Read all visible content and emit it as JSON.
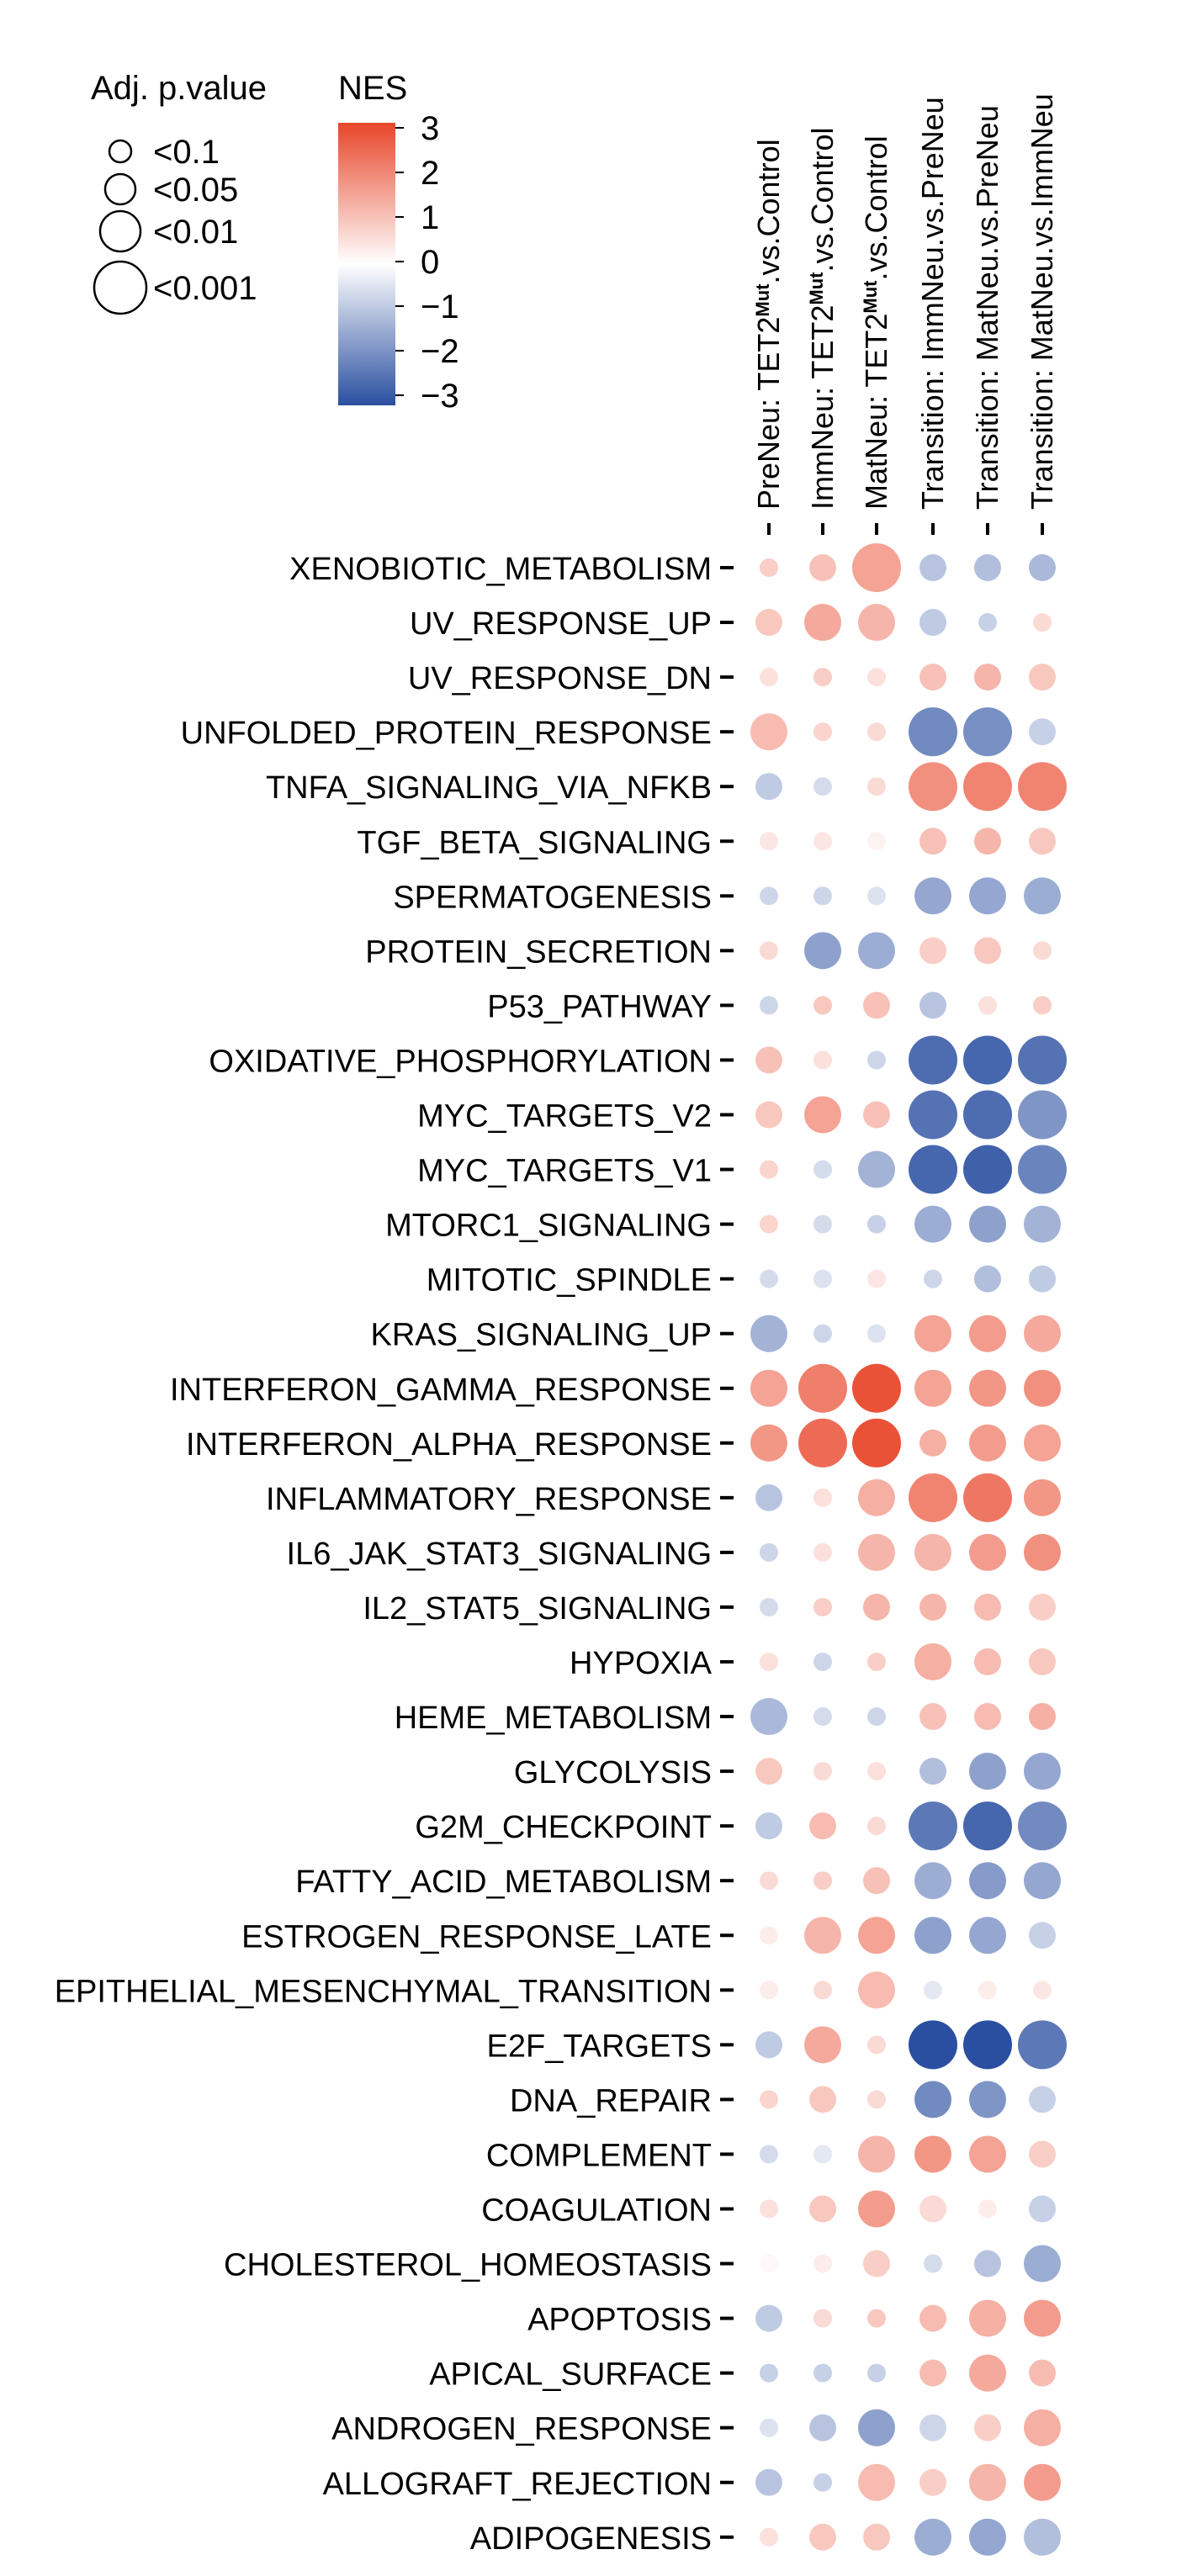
{
  "chart_data": {
    "type": "dotplot",
    "legend": {
      "size_title": "Adj. p.value",
      "size_labels": [
        "<0.1",
        "<0.05",
        "<0.01",
        "<0.001"
      ],
      "color_title": "NES",
      "color_ticks": [
        "3",
        "2",
        "1",
        "0",
        "−1",
        "−2",
        "−3"
      ],
      "color_range": [
        -3,
        3
      ],
      "colors": {
        "high": "#e8462a",
        "mid": "#ffffff",
        "low": "#2a4fa0"
      }
    },
    "columns": [
      {
        "label_prefix": "PreNeu: TET2",
        "superscript": "Mut",
        "label_suffix": ".vs.Control"
      },
      {
        "label_prefix": "ImmNeu: TET2",
        "superscript": "Mut",
        "label_suffix": ".vs.Control"
      },
      {
        "label_prefix": "MatNeu: TET2",
        "superscript": "Mut",
        "label_suffix": ".vs.Control"
      },
      {
        "label_prefix": "Transition: ImmNeu.vs.PreNeu",
        "superscript": "",
        "label_suffix": ""
      },
      {
        "label_prefix": "Transition: MatNeu.vs.PreNeu",
        "superscript": "",
        "label_suffix": ""
      },
      {
        "label_prefix": "Transition: MatNeu.vs.ImmNeu",
        "superscript": "",
        "label_suffix": ""
      }
    ],
    "rows": [
      "XENOBIOTIC_METABOLISM",
      "UV_RESPONSE_UP",
      "UV_RESPONSE_DN",
      "UNFOLDED_PROTEIN_RESPONSE",
      "TNFA_SIGNALING_VIA_NFKB",
      "TGF_BETA_SIGNALING",
      "SPERMATOGENESIS",
      "PROTEIN_SECRETION",
      "P53_PATHWAY",
      "OXIDATIVE_PHOSPHORYLATION",
      "MYC_TARGETS_V2",
      "MYC_TARGETS_V1",
      "MTORC1_SIGNALING",
      "MITOTIC_SPINDLE",
      "KRAS_SIGNALING_UP",
      "INTERFERON_GAMMA_RESPONSE",
      "INTERFERON_ALPHA_RESPONSE",
      "INFLAMMATORY_RESPONSE",
      "IL6_JAK_STAT3_SIGNALING",
      "IL2_STAT5_SIGNALING",
      "HYPOXIA",
      "HEME_METABOLISM",
      "GLYCOLYSIS",
      "G2M_CHECKPOINT",
      "FATTY_ACID_METABOLISM",
      "ESTROGEN_RESPONSE_LATE",
      "EPITHELIAL_MESENCHYMAL_TRANSITION",
      "E2F_TARGETS",
      "DNA_REPAIR",
      "COMPLEMENT",
      "COAGULATION",
      "CHOLESTEROL_HOMEOSTASIS",
      "APOPTOSIS",
      "APICAL_SURFACE",
      "ANDROGEN_RESPONSE",
      "ALLOGRAFT_REJECTION",
      "ADIPOGENESIS"
    ],
    "nes": [
      [
        0.8,
        1.0,
        1.5,
        -1.0,
        -1.1,
        -1.2
      ],
      [
        0.9,
        1.4,
        1.2,
        -0.9,
        -0.8,
        0.6
      ],
      [
        0.5,
        0.8,
        0.5,
        1.0,
        1.2,
        0.9
      ],
      [
        1.1,
        0.7,
        0.6,
        -2.0,
        -1.9,
        -0.8
      ],
      [
        -0.9,
        -0.6,
        0.6,
        1.8,
        2.0,
        2.0
      ],
      [
        0.4,
        0.4,
        0.2,
        1.0,
        1.2,
        0.9
      ],
      [
        -0.7,
        -0.7,
        -0.5,
        -1.5,
        -1.5,
        -1.4
      ],
      [
        0.6,
        -1.6,
        -1.4,
        0.8,
        0.9,
        0.6
      ],
      [
        -0.7,
        0.9,
        1.0,
        -1.0,
        0.5,
        0.8
      ],
      [
        1.0,
        0.5,
        -0.7,
        -2.5,
        -2.6,
        -2.4
      ],
      [
        0.9,
        1.5,
        1.0,
        -2.4,
        -2.5,
        -1.8
      ],
      [
        0.7,
        -0.6,
        -1.3,
        -2.6,
        -2.7,
        -2.1
      ],
      [
        0.7,
        -0.6,
        -0.8,
        -1.4,
        -1.6,
        -1.3
      ],
      [
        -0.6,
        -0.5,
        0.4,
        -0.7,
        -1.1,
        -0.9
      ],
      [
        -1.3,
        -0.7,
        -0.5,
        1.5,
        1.6,
        1.4
      ],
      [
        1.5,
        2.1,
        2.8,
        1.5,
        1.7,
        1.8
      ],
      [
        1.7,
        2.4,
        2.8,
        1.3,
        1.6,
        1.5
      ],
      [
        -1.0,
        0.5,
        1.3,
        2.0,
        2.2,
        1.7
      ],
      [
        -0.7,
        0.5,
        1.2,
        1.2,
        1.6,
        1.8
      ],
      [
        -0.6,
        0.8,
        1.2,
        1.2,
        1.1,
        0.8
      ],
      [
        0.5,
        -0.7,
        0.8,
        1.3,
        1.1,
        0.9
      ],
      [
        -1.2,
        -0.6,
        -0.7,
        1.0,
        1.1,
        1.3
      ],
      [
        0.9,
        0.6,
        0.5,
        -1.1,
        -1.6,
        -1.5
      ],
      [
        -0.9,
        1.1,
        0.6,
        -2.3,
        -2.6,
        -2.0
      ],
      [
        0.6,
        0.8,
        1.0,
        -1.4,
        -1.7,
        -1.5
      ],
      [
        0.3,
        1.2,
        1.5,
        -1.6,
        -1.5,
        -0.8
      ],
      [
        0.3,
        0.6,
        1.1,
        -0.4,
        0.3,
        0.4
      ],
      [
        -0.9,
        1.4,
        0.6,
        -3.0,
        -3.1,
        -2.3
      ],
      [
        0.7,
        0.9,
        0.6,
        -2.0,
        -1.8,
        -0.8
      ],
      [
        -0.6,
        -0.4,
        1.2,
        1.7,
        1.5,
        0.8
      ],
      [
        0.5,
        0.9,
        1.6,
        0.6,
        0.3,
        -0.8
      ],
      [
        0.1,
        0.3,
        0.8,
        -0.6,
        -1.0,
        -1.4
      ],
      [
        -0.9,
        0.6,
        0.9,
        1.1,
        1.3,
        1.6
      ],
      [
        -0.8,
        -0.8,
        -0.8,
        1.1,
        1.4,
        1.1
      ],
      [
        -0.5,
        -1.0,
        -1.6,
        -0.7,
        0.8,
        1.3
      ],
      [
        -1.0,
        -0.8,
        1.1,
        0.8,
        1.2,
        1.6
      ],
      [
        0.5,
        0.9,
        0.9,
        -1.4,
        -1.5,
        -1.1
      ]
    ],
    "padj_level": [
      [
        0,
        1,
        3,
        1,
        1,
        1
      ],
      [
        1,
        2,
        2,
        1,
        0,
        0
      ],
      [
        0,
        0,
        0,
        1,
        1,
        1
      ],
      [
        2,
        0,
        0,
        3,
        3,
        1
      ],
      [
        1,
        0,
        0,
        3,
        3,
        3
      ],
      [
        0,
        0,
        0,
        1,
        1,
        1
      ],
      [
        0,
        0,
        0,
        2,
        2,
        2
      ],
      [
        0,
        2,
        2,
        1,
        1,
        0
      ],
      [
        0,
        0,
        1,
        1,
        0,
        0
      ],
      [
        1,
        0,
        0,
        3,
        3,
        3
      ],
      [
        1,
        2,
        1,
        3,
        3,
        3
      ],
      [
        0,
        0,
        2,
        3,
        3,
        3
      ],
      [
        0,
        0,
        0,
        2,
        2,
        2
      ],
      [
        0,
        0,
        0,
        0,
        1,
        1
      ],
      [
        2,
        0,
        0,
        2,
        2,
        2
      ],
      [
        2,
        3,
        3,
        2,
        2,
        2
      ],
      [
        2,
        3,
        3,
        1,
        2,
        2
      ],
      [
        1,
        0,
        2,
        3,
        3,
        2
      ],
      [
        0,
        0,
        2,
        2,
        2,
        2
      ],
      [
        0,
        0,
        1,
        1,
        1,
        1
      ],
      [
        0,
        0,
        0,
        2,
        1,
        1
      ],
      [
        2,
        0,
        0,
        1,
        1,
        1
      ],
      [
        1,
        0,
        0,
        1,
        2,
        2
      ],
      [
        1,
        1,
        0,
        3,
        3,
        3
      ],
      [
        0,
        0,
        1,
        2,
        2,
        2
      ],
      [
        0,
        2,
        2,
        2,
        2,
        1
      ],
      [
        0,
        0,
        2,
        0,
        0,
        0
      ],
      [
        1,
        2,
        0,
        3,
        3,
        3
      ],
      [
        0,
        1,
        0,
        2,
        2,
        1
      ],
      [
        0,
        0,
        2,
        2,
        2,
        1
      ],
      [
        0,
        1,
        2,
        1,
        0,
        1
      ],
      [
        0,
        0,
        1,
        0,
        1,
        2
      ],
      [
        1,
        0,
        0,
        1,
        2,
        2
      ],
      [
        0,
        0,
        0,
        1,
        2,
        1
      ],
      [
        0,
        1,
        2,
        1,
        1,
        2
      ],
      [
        1,
        0,
        2,
        1,
        2,
        2
      ],
      [
        0,
        1,
        1,
        2,
        2,
        2
      ]
    ]
  }
}
